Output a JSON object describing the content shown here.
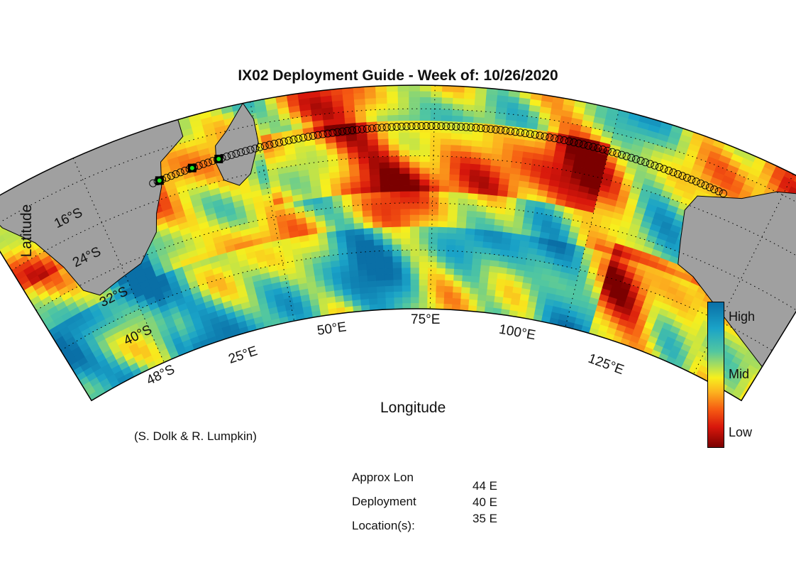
{
  "title": "IX02 Deployment Guide - Week of: 10/26/2020",
  "axes": {
    "xlabel": "Longitude",
    "ylabel": "Latitude"
  },
  "lat_ticks": [
    "16°S",
    "24°S",
    "32°S",
    "40°S",
    "48°S"
  ],
  "lon_ticks": [
    "25°E",
    "50°E",
    "75°E",
    "100°E",
    "125°E"
  ],
  "colorbar": {
    "high": "High",
    "mid": "Mid",
    "low": "Low"
  },
  "credit": "(S. Dolk & R. Lumpkin)",
  "deployment": {
    "label_lines": [
      "Approx Lon",
      "Deployment",
      "Location(s):"
    ],
    "locations": [
      "44 E",
      "40 E",
      "35 E"
    ]
  },
  "colors": {
    "land": "#a0a0a0",
    "high": "#0a6fa6",
    "mid": "#f7ef1d",
    "low": "#7b0000",
    "marker_fill": "#19e619"
  },
  "chart_data": {
    "type": "heatmap",
    "title": "IX02 Deployment Guide - Week of: 10/26/2020",
    "xlabel": "Longitude",
    "ylabel": "Latitude",
    "lon_range": [
      10,
      135
    ],
    "lat_range": [
      -50,
      -12
    ],
    "colorscale": [
      "Low",
      "Mid",
      "High"
    ],
    "track": {
      "lon_start": 34,
      "lat_start": -21,
      "lon_end": 118,
      "lat_end": -20,
      "symbol": "open-circle"
    },
    "deployment_lons": [
      44,
      40,
      35
    ]
  }
}
